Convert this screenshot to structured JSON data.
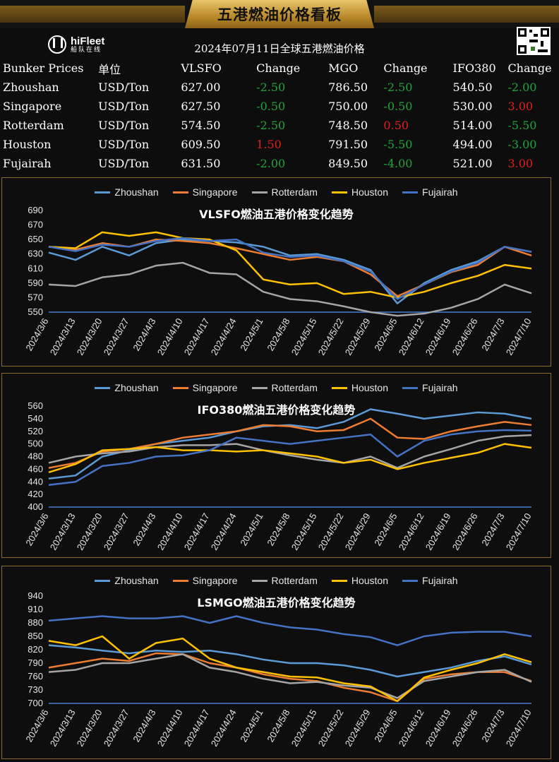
{
  "header": {
    "title": "五港燃油价格看板"
  },
  "logo": {
    "brand": "hiFleet",
    "sub": "船队在线"
  },
  "date_title": "2024年07月11日全球五港燃油价格",
  "table": {
    "columns": [
      "Bunker Prices",
      "单位",
      "VLSFO",
      "Change",
      "MGO",
      "Change",
      "IFO380",
      "Change"
    ],
    "rows": [
      {
        "port": "Zhoushan",
        "unit": "USD/Ton",
        "vlsfo": "627.00",
        "vlsfo_chg": "-2.50",
        "mgo": "786.50",
        "mgo_chg": "-2.50",
        "ifo": "540.50",
        "ifo_chg": "-2.00"
      },
      {
        "port": "Singapore",
        "unit": "USD/Ton",
        "vlsfo": "627.50",
        "vlsfo_chg": "-0.50",
        "mgo": "750.00",
        "mgo_chg": "-0.50",
        "ifo": "530.00",
        "ifo_chg": "3.00"
      },
      {
        "port": "Rotterdam",
        "unit": "USD/Ton",
        "vlsfo": "574.50",
        "vlsfo_chg": "-2.50",
        "mgo": "748.50",
        "mgo_chg": "0.50",
        "ifo": "514.00",
        "ifo_chg": "-5.50"
      },
      {
        "port": "Houston",
        "unit": "USD/Ton",
        "vlsfo": "609.50",
        "vlsfo_chg": "1.50",
        "mgo": "791.50",
        "mgo_chg": "-5.50",
        "ifo": "494.00",
        "ifo_chg": "-3.00"
      },
      {
        "port": "Fujairah",
        "unit": "USD/Ton",
        "vlsfo": "631.50",
        "vlsfo_chg": "-2.00",
        "mgo": "849.50",
        "mgo_chg": "-4.00",
        "ifo": "521.00",
        "ifo_chg": "3.00"
      }
    ]
  },
  "colors": {
    "up": "#e02020",
    "down": "#21a33a",
    "accent": "#b9892a"
  },
  "chart_data": [
    {
      "type": "line",
      "title": "VLSFO燃油五港价格变化趋势",
      "x": [
        "2024/3/6",
        "2024/3/13",
        "2024/3/20",
        "2024/3/27",
        "2024/4/3",
        "2024/4/10",
        "2024/4/17",
        "2024/4/24",
        "2024/5/1",
        "2024/5/8",
        "2024/5/15",
        "2024/5/22",
        "2024/5/29",
        "2024/6/5",
        "2024/6/12",
        "2024/6/19",
        "2024/6/26",
        "2024/7/3",
        "2024/7/10"
      ],
      "yticks": [
        550,
        570,
        590,
        610,
        630,
        650,
        670,
        690
      ],
      "ylim": [
        550,
        690
      ],
      "legend": "top",
      "series": [
        {
          "name": "Zhoushan",
          "color": "#5b9bd5",
          "values": [
            632,
            622,
            640,
            628,
            645,
            650,
            648,
            646,
            640,
            628,
            630,
            622,
            608,
            562,
            590,
            608,
            620,
            640,
            633
          ]
        },
        {
          "name": "Singapore",
          "color": "#ed7d31",
          "values": [
            640,
            636,
            645,
            640,
            650,
            648,
            645,
            638,
            630,
            622,
            626,
            620,
            602,
            572,
            588,
            605,
            615,
            640,
            628
          ]
        },
        {
          "name": "Rotterdam",
          "color": "#a5a5a5",
          "values": [
            588,
            586,
            598,
            602,
            614,
            618,
            604,
            602,
            578,
            568,
            565,
            558,
            550,
            545,
            548,
            556,
            568,
            588,
            576
          ]
        },
        {
          "name": "Houston",
          "color": "#ffc000",
          "values": [
            640,
            638,
            660,
            655,
            660,
            652,
            650,
            635,
            595,
            588,
            590,
            575,
            578,
            570,
            578,
            590,
            600,
            615,
            610
          ]
        },
        {
          "name": "Fujairah",
          "color": "#4472c4",
          "values": [
            640,
            634,
            643,
            640,
            648,
            652,
            648,
            650,
            632,
            626,
            628,
            620,
            606,
            568,
            588,
            606,
            618,
            640,
            633
          ]
        }
      ]
    },
    {
      "type": "line",
      "title": "IFO380燃油五港价格变化趋势",
      "x": [
        "2024/3/6",
        "2024/3/13",
        "2024/3/20",
        "2024/3/27",
        "2024/4/3",
        "2024/4/10",
        "2024/4/17",
        "2024/4/24",
        "2024/5/1",
        "2024/5/8",
        "2024/5/15",
        "2024/5/22",
        "2024/5/29",
        "2024/6/5",
        "2024/6/12",
        "2024/6/19",
        "2024/6/26",
        "2024/7/3",
        "2024/7/10"
      ],
      "yticks": [
        400,
        420,
        440,
        460,
        480,
        500,
        520,
        540,
        560
      ],
      "ylim": [
        400,
        560
      ],
      "legend": "top",
      "series": [
        {
          "name": "Zhoushan",
          "color": "#5b9bd5",
          "values": [
            445,
            450,
            480,
            490,
            500,
            505,
            510,
            520,
            528,
            530,
            525,
            535,
            555,
            548,
            540,
            545,
            550,
            548,
            540
          ]
        },
        {
          "name": "Singapore",
          "color": "#ed7d31",
          "values": [
            462,
            470,
            488,
            492,
            500,
            510,
            515,
            520,
            530,
            528,
            520,
            522,
            540,
            510,
            508,
            520,
            528,
            535,
            530
          ]
        },
        {
          "name": "Rotterdam",
          "color": "#a5a5a5",
          "values": [
            470,
            480,
            485,
            488,
            495,
            498,
            498,
            500,
            490,
            482,
            475,
            470,
            480,
            462,
            480,
            492,
            505,
            512,
            514
          ]
        },
        {
          "name": "Houston",
          "color": "#ffc000",
          "values": [
            455,
            468,
            490,
            492,
            495,
            490,
            490,
            488,
            490,
            485,
            480,
            470,
            475,
            460,
            470,
            478,
            486,
            500,
            494
          ]
        },
        {
          "name": "Fujairah",
          "color": "#4472c4",
          "values": [
            435,
            440,
            465,
            470,
            480,
            482,
            490,
            510,
            505,
            500,
            505,
            510,
            515,
            480,
            505,
            515,
            520,
            522,
            521
          ]
        }
      ]
    },
    {
      "type": "line",
      "title": "LSMGO燃油五港价格变化趋势",
      "x": [
        "2024/3/6",
        "2024/3/13",
        "2024/3/20",
        "2024/3/27",
        "2024/4/3",
        "2024/4/10",
        "2024/4/17",
        "2024/4/24",
        "2024/5/1",
        "2024/5/8",
        "2024/5/15",
        "2024/5/22",
        "2024/5/29",
        "2024/6/5",
        "2024/6/12",
        "2024/6/19",
        "2024/6/26",
        "2024/7/3",
        "2024/7/10"
      ],
      "yticks": [
        700,
        730,
        760,
        790,
        820,
        850,
        880,
        910,
        940
      ],
      "ylim": [
        700,
        940
      ],
      "legend": "top",
      "series": [
        {
          "name": "Zhoushan",
          "color": "#5b9bd5",
          "values": [
            830,
            825,
            818,
            812,
            818,
            815,
            818,
            810,
            798,
            790,
            790,
            785,
            775,
            760,
            770,
            780,
            795,
            805,
            787
          ]
        },
        {
          "name": "Singapore",
          "color": "#ed7d31",
          "values": [
            780,
            790,
            800,
            795,
            812,
            810,
            790,
            780,
            765,
            755,
            750,
            735,
            725,
            705,
            755,
            765,
            770,
            770,
            750
          ]
        },
        {
          "name": "Rotterdam",
          "color": "#a5a5a5",
          "values": [
            770,
            775,
            790,
            790,
            800,
            810,
            780,
            770,
            755,
            745,
            748,
            740,
            735,
            712,
            750,
            760,
            770,
            775,
            748
          ]
        },
        {
          "name": "Houston",
          "color": "#ffc000",
          "values": [
            840,
            830,
            850,
            800,
            835,
            845,
            800,
            780,
            770,
            760,
            758,
            745,
            738,
            705,
            758,
            775,
            790,
            810,
            792
          ]
        },
        {
          "name": "Fujairah",
          "color": "#4472c4",
          "values": [
            885,
            890,
            895,
            890,
            890,
            895,
            880,
            895,
            880,
            870,
            865,
            855,
            848,
            830,
            850,
            858,
            860,
            860,
            850
          ]
        }
      ]
    }
  ]
}
